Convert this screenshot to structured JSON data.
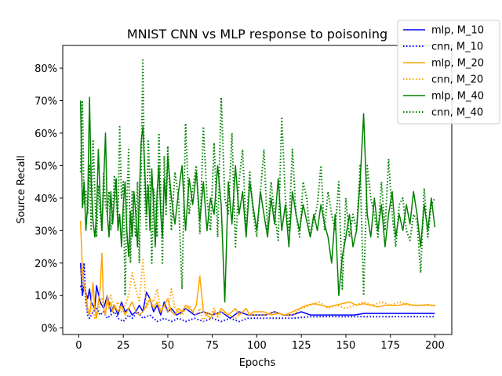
{
  "chart_data": {
    "type": "line",
    "title": "MNIST CNN vs MLP response to poisoning",
    "xlabel": "Epochs",
    "ylabel": "Source Recall",
    "xlim": [
      -9,
      209.5
    ],
    "ylim": [
      -0.02,
      0.87
    ],
    "xticks": [
      0,
      25,
      50,
      75,
      100,
      125,
      150,
      175,
      200
    ],
    "xtick_labels": [
      "0",
      "25",
      "50",
      "75",
      "100",
      "125",
      "150",
      "175",
      "200"
    ],
    "yticks": [
      0,
      0.1,
      0.2,
      0.3,
      0.4,
      0.5,
      0.6,
      0.7,
      0.8
    ],
    "ytick_labels": [
      "0%",
      "10%",
      "20%",
      "30%",
      "40%",
      "50%",
      "60%",
      "70%",
      "80%"
    ],
    "grid": false,
    "legend_position": "top-right",
    "series": [
      {
        "name": "mlp, M_10",
        "color": "#0000ff",
        "style": "solid",
        "x": [
          1,
          2,
          3,
          4,
          5,
          6,
          7,
          8,
          9,
          10,
          12,
          14,
          16,
          18,
          20,
          22,
          24,
          26,
          28,
          30,
          32,
          34,
          36,
          38,
          40,
          42,
          44,
          46,
          48,
          50,
          52,
          55,
          58,
          60,
          65,
          70,
          75,
          80,
          85,
          90,
          95,
          100,
          105,
          110,
          115,
          120,
          125,
          130,
          135,
          140,
          145,
          150,
          155,
          160,
          165,
          170,
          175,
          180,
          185,
          190,
          195,
          200
        ],
        "y": [
          0.2,
          0.1,
          0.13,
          0.11,
          0.09,
          0.12,
          0.08,
          0.07,
          0.06,
          0.13,
          0.08,
          0.06,
          0.1,
          0.05,
          0.07,
          0.04,
          0.08,
          0.05,
          0.06,
          0.04,
          0.05,
          0.07,
          0.05,
          0.11,
          0.09,
          0.05,
          0.07,
          0.04,
          0.08,
          0.05,
          0.06,
          0.04,
          0.05,
          0.06,
          0.04,
          0.05,
          0.04,
          0.05,
          0.03,
          0.05,
          0.04,
          0.04,
          0.04,
          0.05,
          0.04,
          0.04,
          0.05,
          0.04,
          0.04,
          0.04,
          0.04,
          0.04,
          0.04,
          0.045,
          0.045,
          0.045,
          0.045,
          0.045,
          0.045,
          0.045,
          0.045,
          0.045
        ]
      },
      {
        "name": "cnn, M_10",
        "color": "#0000ff",
        "style": "dotted",
        "x": [
          1,
          2,
          3,
          4,
          5,
          6,
          8,
          10,
          12,
          14,
          16,
          18,
          20,
          22,
          25,
          28,
          30,
          33,
          36,
          40,
          44,
          48,
          52,
          56,
          60,
          65,
          70,
          75,
          80,
          85,
          90,
          95,
          100,
          110,
          120,
          130,
          140,
          150,
          160,
          170,
          180,
          190,
          200
        ],
        "y": [
          0.13,
          0.11,
          0.2,
          0.08,
          0.04,
          0.03,
          0.05,
          0.06,
          0.04,
          0.05,
          0.03,
          0.04,
          0.05,
          0.03,
          0.02,
          0.04,
          0.03,
          0.05,
          0.03,
          0.04,
          0.02,
          0.03,
          0.02,
          0.03,
          0.02,
          0.03,
          0.02,
          0.03,
          0.02,
          0.03,
          0.02,
          0.03,
          0.03,
          0.03,
          0.03,
          0.035,
          0.035,
          0.035,
          0.035,
          0.035,
          0.035,
          0.035,
          0.035
        ]
      },
      {
        "name": "mlp, M_20",
        "color": "#ffa500",
        "style": "solid",
        "x": [
          1,
          2,
          3,
          4,
          5,
          6,
          7,
          8,
          9,
          10,
          11,
          12,
          13,
          14,
          15,
          16,
          17,
          18,
          19,
          20,
          22,
          24,
          26,
          28,
          30,
          32,
          34,
          36,
          38,
          40,
          42,
          44,
          46,
          48,
          50,
          52,
          54,
          56,
          58,
          60,
          62,
          64,
          66,
          68,
          70,
          72,
          74,
          76,
          78,
          80,
          82,
          84,
          86,
          88,
          90,
          92,
          94,
          96,
          98,
          100,
          104,
          108,
          112,
          116,
          120,
          124,
          128,
          132,
          136,
          140,
          144,
          148,
          152,
          156,
          160,
          164,
          168,
          172,
          176,
          180,
          184,
          188,
          192,
          196,
          200
        ],
        "y": [
          0.33,
          0.18,
          0.13,
          0.11,
          0.06,
          0.04,
          0.08,
          0.14,
          0.06,
          0.03,
          0.08,
          0.12,
          0.23,
          0.06,
          0.04,
          0.1,
          0.06,
          0.08,
          0.05,
          0.07,
          0.05,
          0.07,
          0.04,
          0.06,
          0.08,
          0.05,
          0.04,
          0.05,
          0.07,
          0.09,
          0.06,
          0.08,
          0.05,
          0.07,
          0.09,
          0.05,
          0.04,
          0.06,
          0.05,
          0.07,
          0.06,
          0.05,
          0.07,
          0.16,
          0.05,
          0.04,
          0.03,
          0.05,
          0.04,
          0.06,
          0.05,
          0.04,
          0.05,
          0.06,
          0.04,
          0.05,
          0.06,
          0.04,
          0.05,
          0.05,
          0.05,
          0.04,
          0.045,
          0.04,
          0.05,
          0.06,
          0.07,
          0.075,
          0.07,
          0.065,
          0.07,
          0.075,
          0.08,
          0.07,
          0.075,
          0.07,
          0.065,
          0.07,
          0.07,
          0.07,
          0.075,
          0.07,
          0.07,
          0.072,
          0.068
        ]
      },
      {
        "name": "cnn, M_20",
        "color": "#ffa500",
        "style": "dotted",
        "x": [
          1,
          2,
          3,
          4,
          5,
          6,
          7,
          8,
          9,
          10,
          11,
          12,
          13,
          14,
          16,
          18,
          20,
          22,
          24,
          26,
          28,
          30,
          32,
          34,
          36,
          38,
          40,
          42,
          44,
          46,
          48,
          50,
          52,
          54,
          56,
          58,
          60,
          62,
          64,
          66,
          68,
          70,
          72,
          74,
          76,
          78,
          80,
          84,
          88,
          92,
          96,
          100,
          105,
          110,
          115,
          120,
          125,
          130,
          135,
          140,
          145,
          150,
          155,
          160,
          165,
          170,
          175,
          180,
          185,
          190,
          195,
          200
        ],
        "y": [
          0.18,
          0.15,
          0.12,
          0.1,
          0.05,
          0.04,
          0.07,
          0.06,
          0.03,
          0.05,
          0.04,
          0.08,
          0.09,
          0.06,
          0.07,
          0.1,
          0.06,
          0.08,
          0.05,
          0.07,
          0.1,
          0.17,
          0.12,
          0.08,
          0.21,
          0.06,
          0.09,
          0.08,
          0.12,
          0.05,
          0.07,
          0.05,
          0.12,
          0.06,
          0.05,
          0.04,
          0.06,
          0.07,
          0.05,
          0.04,
          0.06,
          0.02,
          0.05,
          0.04,
          0.06,
          0.03,
          0.05,
          0.04,
          0.03,
          0.05,
          0.04,
          0.04,
          0.04,
          0.05,
          0.04,
          0.04,
          0.06,
          0.07,
          0.08,
          0.06,
          0.07,
          0.06,
          0.07,
          0.08,
          0.07,
          0.08,
          0.07,
          0.08,
          0.07,
          0.07,
          0.07,
          0.07
        ]
      },
      {
        "name": "mlp, M_40",
        "color": "#008000",
        "style": "solid",
        "x": [
          1,
          2,
          3,
          4,
          5,
          6,
          7,
          8,
          9,
          10,
          11,
          12,
          13,
          14,
          15,
          16,
          17,
          18,
          19,
          20,
          21,
          22,
          23,
          24,
          25,
          26,
          27,
          28,
          29,
          30,
          31,
          32,
          33,
          34,
          35,
          36,
          37,
          38,
          39,
          40,
          41,
          42,
          43,
          44,
          45,
          46,
          47,
          48,
          49,
          50,
          52,
          54,
          56,
          58,
          60,
          62,
          64,
          66,
          68,
          70,
          72,
          74,
          76,
          78,
          80,
          82,
          84,
          86,
          88,
          90,
          92,
          94,
          96,
          98,
          100,
          102,
          104,
          106,
          108,
          110,
          112,
          114,
          116,
          118,
          120,
          122,
          124,
          126,
          128,
          130,
          132,
          134,
          136,
          138,
          140,
          142,
          144,
          146,
          148,
          150,
          152,
          154,
          156,
          158,
          160,
          162,
          164,
          166,
          168,
          170,
          172,
          174,
          176,
          178,
          180,
          182,
          184,
          186,
          188,
          190,
          192,
          194,
          196,
          198,
          200
        ],
        "y": [
          0.7,
          0.37,
          0.45,
          0.3,
          0.38,
          0.71,
          0.45,
          0.33,
          0.28,
          0.35,
          0.55,
          0.4,
          0.3,
          0.45,
          0.6,
          0.35,
          0.28,
          0.42,
          0.32,
          0.4,
          0.46,
          0.3,
          0.35,
          0.25,
          0.38,
          0.45,
          0.3,
          0.22,
          0.36,
          0.28,
          0.42,
          0.35,
          0.25,
          0.4,
          0.57,
          0.62,
          0.5,
          0.35,
          0.44,
          0.3,
          0.49,
          0.38,
          0.25,
          0.42,
          0.5,
          0.35,
          0.28,
          0.46,
          0.38,
          0.53,
          0.4,
          0.32,
          0.42,
          0.5,
          0.3,
          0.46,
          0.38,
          0.48,
          0.33,
          0.45,
          0.3,
          0.4,
          0.35,
          0.5,
          0.38,
          0.08,
          0.45,
          0.32,
          0.5,
          0.35,
          0.42,
          0.28,
          0.45,
          0.37,
          0.3,
          0.42,
          0.35,
          0.28,
          0.4,
          0.32,
          0.46,
          0.3,
          0.38,
          0.25,
          0.42,
          0.35,
          0.3,
          0.38,
          0.33,
          0.28,
          0.35,
          0.3,
          0.38,
          0.32,
          0.28,
          0.2,
          0.35,
          0.1,
          0.22,
          0.28,
          0.35,
          0.25,
          0.3,
          0.45,
          0.66,
          0.35,
          0.28,
          0.4,
          0.3,
          0.38,
          0.25,
          0.35,
          0.42,
          0.28,
          0.35,
          0.3,
          0.38,
          0.32,
          0.42,
          0.35,
          0.25,
          0.38,
          0.3,
          0.4,
          0.31
        ]
      },
      {
        "name": "cnn, M_40",
        "color": "#008000",
        "style": "dotted",
        "x": [
          1,
          2,
          3,
          4,
          5,
          6,
          7,
          8,
          9,
          10,
          11,
          12,
          13,
          14,
          15,
          16,
          17,
          18,
          19,
          20,
          21,
          22,
          23,
          24,
          25,
          26,
          27,
          28,
          29,
          30,
          31,
          32,
          33,
          34,
          35,
          36,
          37,
          38,
          39,
          40,
          41,
          42,
          43,
          44,
          45,
          46,
          47,
          48,
          49,
          50,
          52,
          54,
          56,
          58,
          60,
          62,
          64,
          66,
          68,
          70,
          72,
          74,
          76,
          78,
          80,
          82,
          84,
          86,
          88,
          90,
          92,
          94,
          96,
          98,
          100,
          102,
          104,
          106,
          108,
          110,
          112,
          114,
          116,
          118,
          120,
          122,
          124,
          126,
          128,
          130,
          132,
          134,
          136,
          138,
          140,
          142,
          144,
          146,
          148,
          150,
          152,
          154,
          156,
          158,
          160,
          162,
          164,
          166,
          168,
          170,
          172,
          174,
          176,
          178,
          180,
          182,
          184,
          186,
          188,
          190,
          192,
          194,
          196,
          198,
          200
        ],
        "y": [
          0.48,
          0.7,
          0.38,
          0.42,
          0.35,
          0.5,
          0.3,
          0.58,
          0.42,
          0.28,
          0.44,
          0.35,
          0.3,
          0.48,
          0.38,
          0.35,
          0.42,
          0.3,
          0.35,
          0.47,
          0.4,
          0.33,
          0.62,
          0.4,
          0.45,
          0.1,
          0.38,
          0.55,
          0.2,
          0.42,
          0.33,
          0.28,
          0.45,
          0.2,
          0.48,
          0.83,
          0.4,
          0.3,
          0.58,
          0.45,
          0.2,
          0.43,
          0.38,
          0.28,
          0.6,
          0.42,
          0.2,
          0.53,
          0.35,
          0.56,
          0.3,
          0.48,
          0.4,
          0.12,
          0.63,
          0.35,
          0.43,
          0.5,
          0.29,
          0.62,
          0.4,
          0.3,
          0.57,
          0.28,
          0.71,
          0.4,
          0.35,
          0.6,
          0.25,
          0.45,
          0.55,
          0.3,
          0.48,
          0.35,
          0.28,
          0.42,
          0.55,
          0.3,
          0.45,
          0.35,
          0.27,
          0.65,
          0.4,
          0.3,
          0.55,
          0.35,
          0.28,
          0.45,
          0.4,
          0.28,
          0.33,
          0.38,
          0.5,
          0.3,
          0.42,
          0.35,
          0.3,
          0.45,
          0.12,
          0.4,
          0.28,
          0.35,
          0.3,
          0.5,
          0.1,
          0.5,
          0.4,
          0.35,
          0.28,
          0.45,
          0.3,
          0.52,
          0.35,
          0.25,
          0.38,
          0.4,
          0.3,
          0.27,
          0.35,
          0.33,
          0.17,
          0.43,
          0.28,
          0.38,
          0.4
        ]
      }
    ]
  }
}
